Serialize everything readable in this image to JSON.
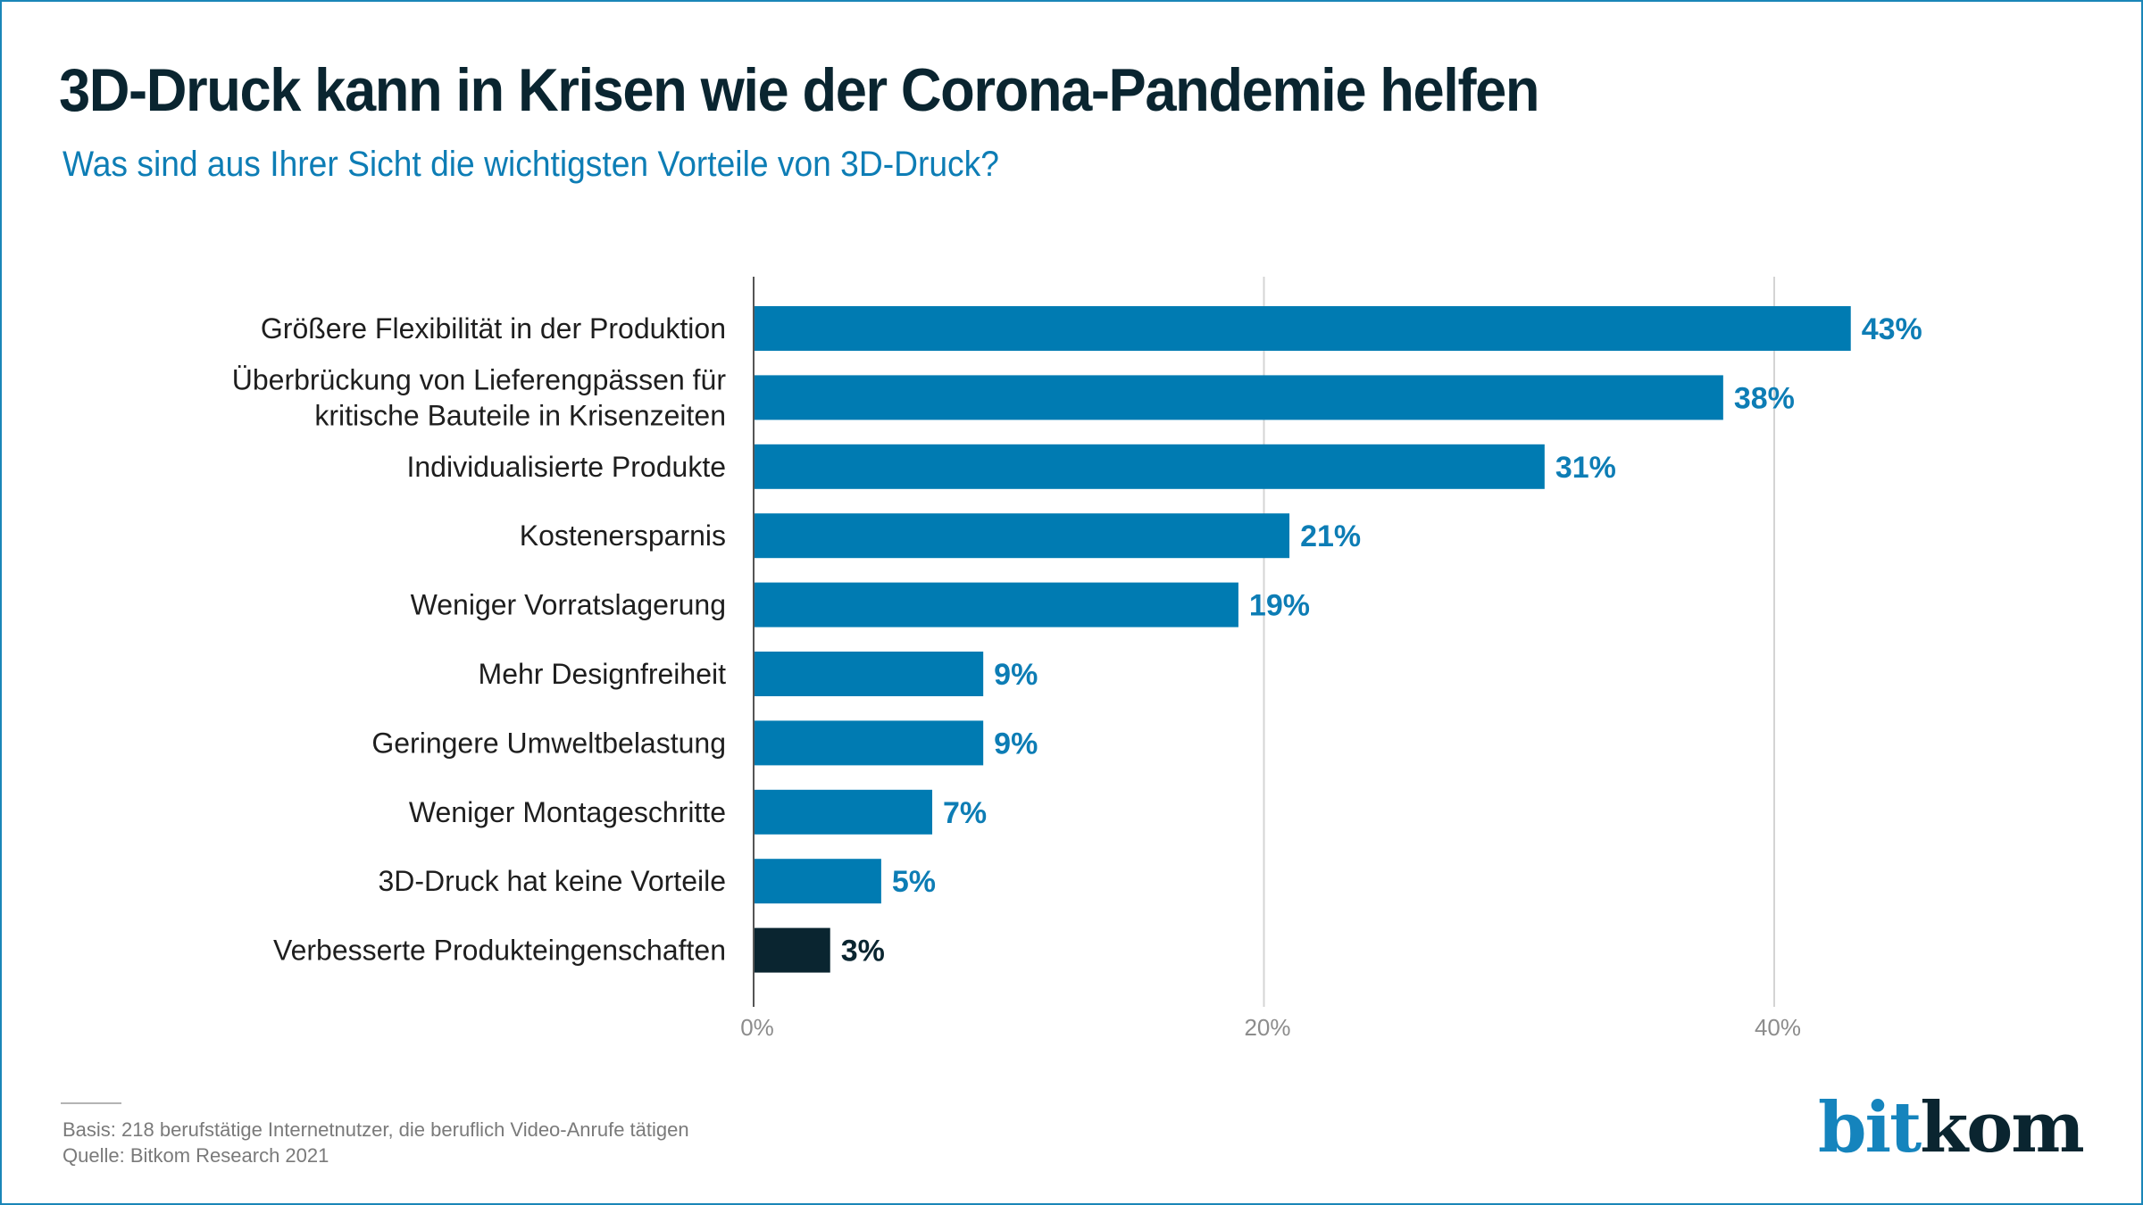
{
  "header": {
    "title": "3D-Druck kann in Krisen wie der Corona-Pandemie helfen",
    "subtitle": "Was sind aus Ihrer Sicht die wichtigsten Vorteile von 3D-Druck?"
  },
  "colors": {
    "bar_primary": "#007bb2",
    "bar_highlight": "#0a2530",
    "value_primary": "#0d7db5",
    "value_highlight": "#0a2530",
    "title": "#0a2530",
    "subtitle": "#0d7db5",
    "gridline": "#d4d4d4",
    "axis": "#555555"
  },
  "chart_data": {
    "type": "bar",
    "orientation": "horizontal",
    "title": "3D-Druck kann in Krisen wie der Corona-Pandemie helfen",
    "subtitle": "Was sind aus Ihrer Sicht die wichtigsten Vorteile von 3D-Druck?",
    "xlabel": "",
    "ylabel": "",
    "xlim": [
      0,
      46
    ],
    "grid": true,
    "legend": "none",
    "categories": [
      [
        "Größere Flexibilität in der Produktion"
      ],
      [
        "Überbrückung von Lieferengpässen für",
        "kritische Bauteile in Krisenzeiten"
      ],
      [
        "Individualisierte Produkte"
      ],
      [
        "Kostenersparnis"
      ],
      [
        "Weniger Vorratslagerung"
      ],
      [
        "Mehr Designfreiheit"
      ],
      [
        "Geringere Umweltbelastung"
      ],
      [
        "Weniger Montageschritte"
      ],
      [
        "3D-Druck hat keine Vorteile"
      ],
      [
        "Verbesserte Produkteingenschaften"
      ]
    ],
    "values": [
      43,
      38,
      31,
      21,
      19,
      9,
      9,
      7,
      5,
      3
    ],
    "value_labels": [
      "43%",
      "38%",
      "31%",
      "21%",
      "19%",
      "9%",
      "9%",
      "7%",
      "5%",
      "3%"
    ],
    "highlight_index": 9,
    "x_ticks": [
      0,
      20,
      40
    ],
    "x_tick_labels": [
      "0%",
      "20%",
      "40%"
    ]
  },
  "footer": {
    "basis": "Basis: 218 berufstätige Internetnutzer, die beruflich Video-Anrufe tätigen",
    "source": "Quelle: Bitkom Research 2021"
  },
  "logo": {
    "part1": "bit",
    "part2": "kom"
  }
}
